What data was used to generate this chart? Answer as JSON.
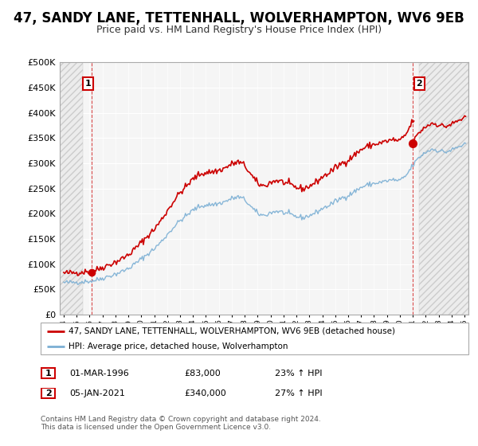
{
  "title": "47, SANDY LANE, TETTENHALL, WOLVERHAMPTON, WV6 9EB",
  "subtitle": "Price paid vs. HM Land Registry's House Price Index (HPI)",
  "legend_line1": "47, SANDY LANE, TETTENHALL, WOLVERHAMPTON, WV6 9EB (detached house)",
  "legend_line2": "HPI: Average price, detached house, Wolverhampton",
  "annotation1_label": "1",
  "annotation1_date": "01-MAR-1996",
  "annotation1_price": "£83,000",
  "annotation1_hpi": "23% ↑ HPI",
  "annotation2_label": "2",
  "annotation2_date": "05-JAN-2021",
  "annotation2_price": "£340,000",
  "annotation2_hpi": "27% ↑ HPI",
  "footer": "Contains HM Land Registry data © Crown copyright and database right 2024.\nThis data is licensed under the Open Government Licence v3.0.",
  "sale1_x": 1996.17,
  "sale1_y": 83000,
  "sale2_x": 2021.01,
  "sale2_y": 340000,
  "ylim": [
    0,
    500000
  ],
  "xlim_start": 1993.7,
  "xlim_end": 2025.3,
  "bg_color": "#ffffff",
  "plot_bg_color": "#f5f5f5",
  "red_color": "#cc0000",
  "blue_color": "#7bafd4",
  "grid_color": "#ffffff",
  "title_fontsize": 12,
  "subtitle_fontsize": 9
}
